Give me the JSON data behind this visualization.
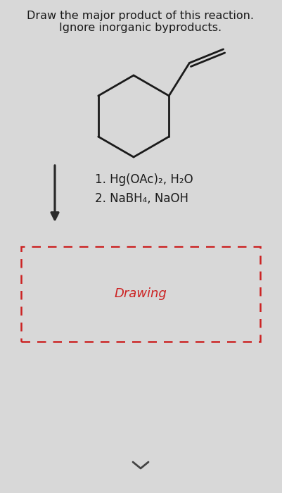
{
  "title_line1": "Draw the major product of this reaction.",
  "title_line2": "Ignore inorganic byproducts.",
  "title_fontsize": 11.5,
  "title_color": "#1a1a1a",
  "bg_color": "#d8d8d8",
  "reagent1": "1. Hg(OAc)₂, H₂O",
  "reagent2": "2. NaBH₄, NaOH",
  "reagent_fontsize": 12,
  "reagent_color": "#1a1a1a",
  "drawing_text": "Drawing",
  "drawing_text_color": "#cc2222",
  "drawing_text_fontsize": 13,
  "arrow_color": "#2a2a2a",
  "dashed_box_color": "#cc2222",
  "molecule_color": "#1a1a1a",
  "molecule_lw": 2.0,
  "chevron_color": "#444444"
}
